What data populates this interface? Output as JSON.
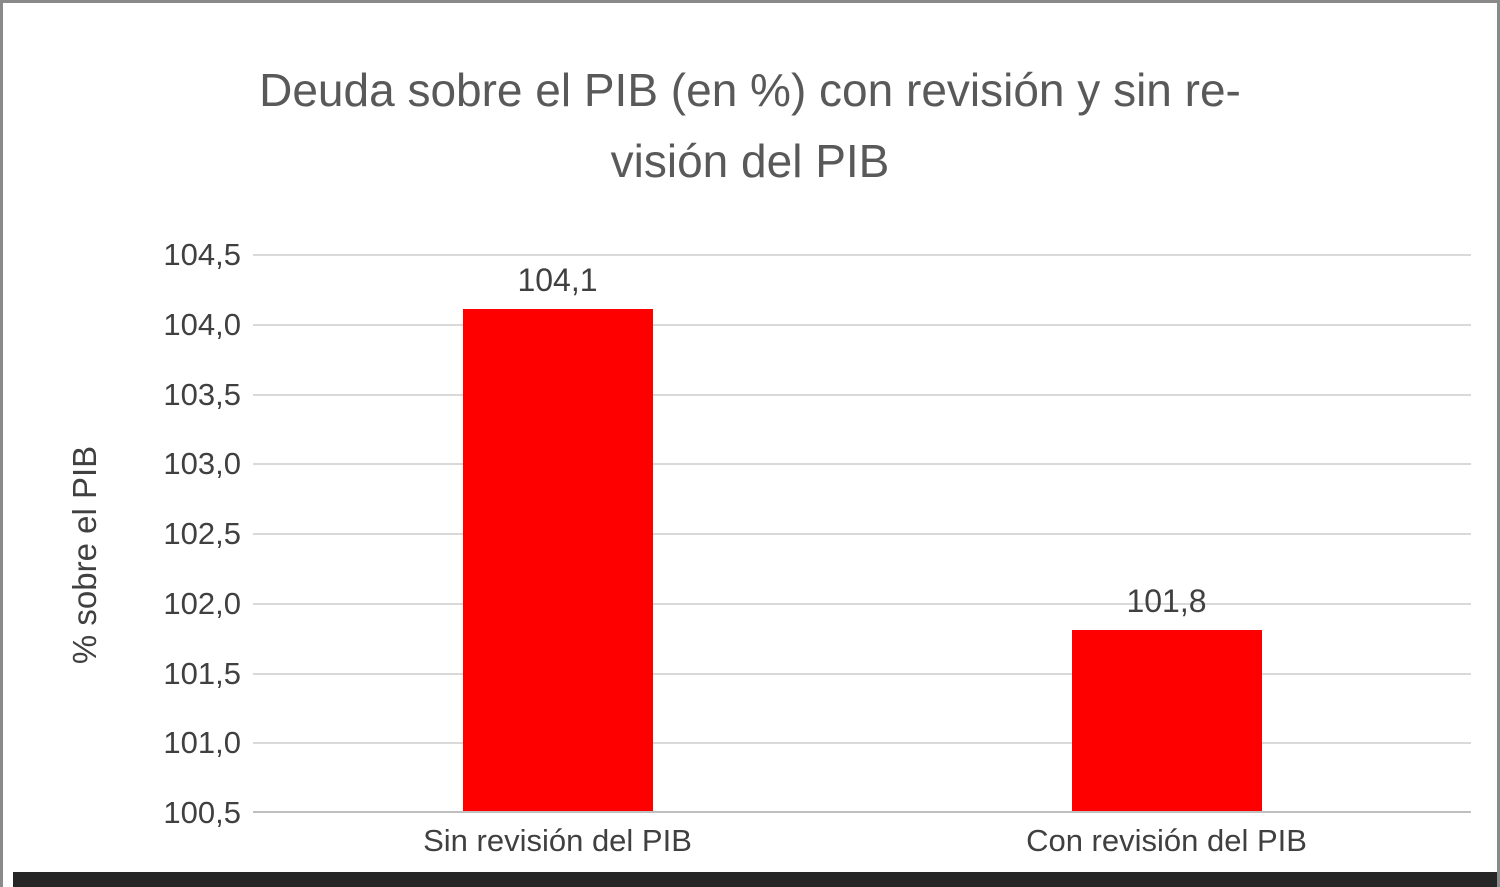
{
  "frame": {
    "border_color": "#8a8a8a",
    "bottom_strip_color": "#262626"
  },
  "chart_data": {
    "type": "bar",
    "title": "Deuda sobre el PIB (en %) con revisión y sin revisión del PIB",
    "title_lines": [
      "Deuda sobre el PIB (en %) con revisión y sin re-",
      "visión del PIB"
    ],
    "ylabel": "% sobre el PIB",
    "xlabel": "",
    "categories": [
      "Sin revisión del PIB",
      "Con revisión del PIB"
    ],
    "values": [
      104.1,
      101.8
    ],
    "value_labels": [
      "104,1",
      "101,8"
    ],
    "ylim": [
      100.5,
      104.5
    ],
    "ytick_step": 0.5,
    "ytick_labels": [
      "104,5",
      "104,0",
      "103,5",
      "103,0",
      "102,5",
      "102,0",
      "101,5",
      "101,0",
      "100,5"
    ],
    "bar_color": "#ff0000",
    "gridline_color": "#d9d9d9",
    "axis_line_color": "#bfbfbf",
    "title_color": "#595959",
    "text_color": "#404040",
    "grid": true,
    "legend": false
  }
}
